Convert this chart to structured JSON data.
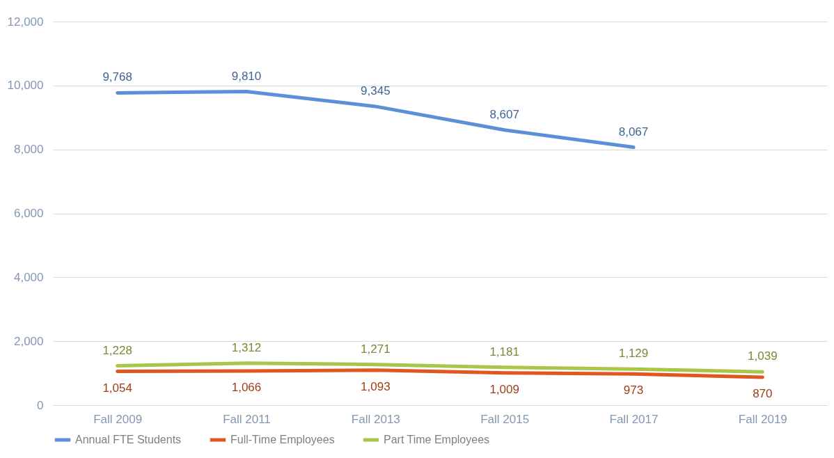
{
  "chart_data": {
    "type": "line",
    "categories": [
      "Fall 2009",
      "Fall 2011",
      "Fall 2013",
      "Fall 2015",
      "Fall 2017",
      "Fall 2019"
    ],
    "series": [
      {
        "name": "Annual FTE Students",
        "color": "#5b8fd6",
        "values": [
          9768,
          9810,
          9345,
          8607,
          8067,
          null
        ],
        "value_labels": [
          "9,768",
          "9,810",
          "9,345",
          "8,607",
          "8,067",
          null
        ]
      },
      {
        "name": "Full-Time Employees",
        "color": "#e0571f",
        "values": [
          1054,
          1066,
          1093,
          1009,
          973,
          870
        ],
        "value_labels": [
          "1,054",
          "1,066",
          "1,093",
          "1,009",
          "973",
          "870"
        ]
      },
      {
        "name": "Part Time Employees",
        "color": "#a9c64b",
        "values": [
          1228,
          1312,
          1271,
          1181,
          1129,
          1039
        ],
        "value_labels": [
          "1,228",
          "1,312",
          "1,271",
          "1,181",
          "1,129",
          "1,039"
        ]
      }
    ],
    "ylim": [
      0,
      12000
    ],
    "yticks": [
      0,
      {
        "value": 2000,
        "label": "2,000"
      },
      {
        "value": 4000,
        "label": "4,000"
      },
      {
        "value": 6000,
        "label": "6,000"
      },
      {
        "value": 8000,
        "label": "8,000"
      },
      {
        "value": 10000,
        "label": "10,000"
      },
      {
        "value": 12000,
        "label": "12,000"
      }
    ],
    "grid": "y",
    "legend": "bottom",
    "marker": "none",
    "line_style": "solid"
  }
}
